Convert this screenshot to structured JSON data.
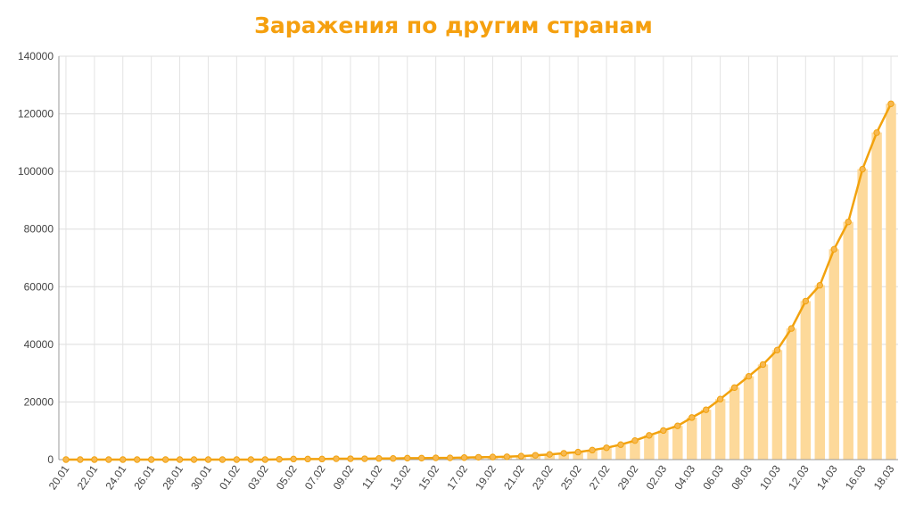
{
  "chart_data": {
    "type": "bar+line",
    "title": "Заражения по другим странам",
    "ylim": [
      0,
      140000
    ],
    "yticks": [
      0,
      20000,
      40000,
      60000,
      80000,
      100000,
      120000,
      140000
    ],
    "grid": true,
    "colors": {
      "line": "#f2a20d",
      "bar": "#fdd99a",
      "title": "#f5a00f"
    },
    "x": [
      "20.01",
      "21.01",
      "22.01",
      "23.01",
      "24.01",
      "25.01",
      "26.01",
      "27.01",
      "28.01",
      "29.01",
      "30.01",
      "31.01",
      "01.02",
      "02.02",
      "03.02",
      "04.02",
      "05.02",
      "06.02",
      "07.02",
      "08.02",
      "09.02",
      "10.02",
      "11.02",
      "12.02",
      "13.02",
      "14.02",
      "15.02",
      "16.02",
      "17.02",
      "18.02",
      "19.02",
      "20.02",
      "21.02",
      "22.02",
      "23.02",
      "24.02",
      "25.02",
      "26.02",
      "27.02",
      "28.02",
      "29.02",
      "01.03",
      "02.03",
      "03.03",
      "04.03",
      "05.03",
      "06.03",
      "07.03",
      "08.03",
      "09.03",
      "10.03",
      "11.03",
      "12.03",
      "13.03",
      "14.03",
      "15.03",
      "16.03",
      "17.03",
      "18.03"
    ],
    "xtick_labels": [
      "20.01",
      "22.01",
      "24.01",
      "26.01",
      "28.01",
      "30.01",
      "01.02",
      "03.02",
      "05.02",
      "07.02",
      "09.02",
      "11.02",
      "13.02",
      "15.02",
      "17.02",
      "19.02",
      "21.02",
      "23.02",
      "25.02",
      "27.02",
      "29.02",
      "02.03",
      "04.03",
      "06.03",
      "08.03",
      "10.03",
      "12.03",
      "14.03",
      "16.03",
      "18.03"
    ],
    "values": [
      0,
      0,
      0,
      0,
      0,
      0,
      0,
      0,
      0,
      0,
      0,
      0,
      0,
      0,
      0,
      100,
      200,
      200,
      200,
      300,
      300,
      300,
      400,
      400,
      500,
      500,
      600,
      600,
      700,
      800,
      900,
      1000,
      1200,
      1500,
      1800,
      2200,
      2600,
      3300,
      4100,
      5200,
      6600,
      8400,
      10100,
      11700,
      14600,
      17300,
      21000,
      25000,
      28900,
      33000,
      38000,
      45500,
      55000,
      60500,
      73000,
      82500,
      100800,
      113500,
      123500
    ],
    "series": [
      {
        "type": "bar",
        "color": "#fdd99a"
      },
      {
        "type": "line",
        "color": "#f2a20d"
      }
    ]
  }
}
